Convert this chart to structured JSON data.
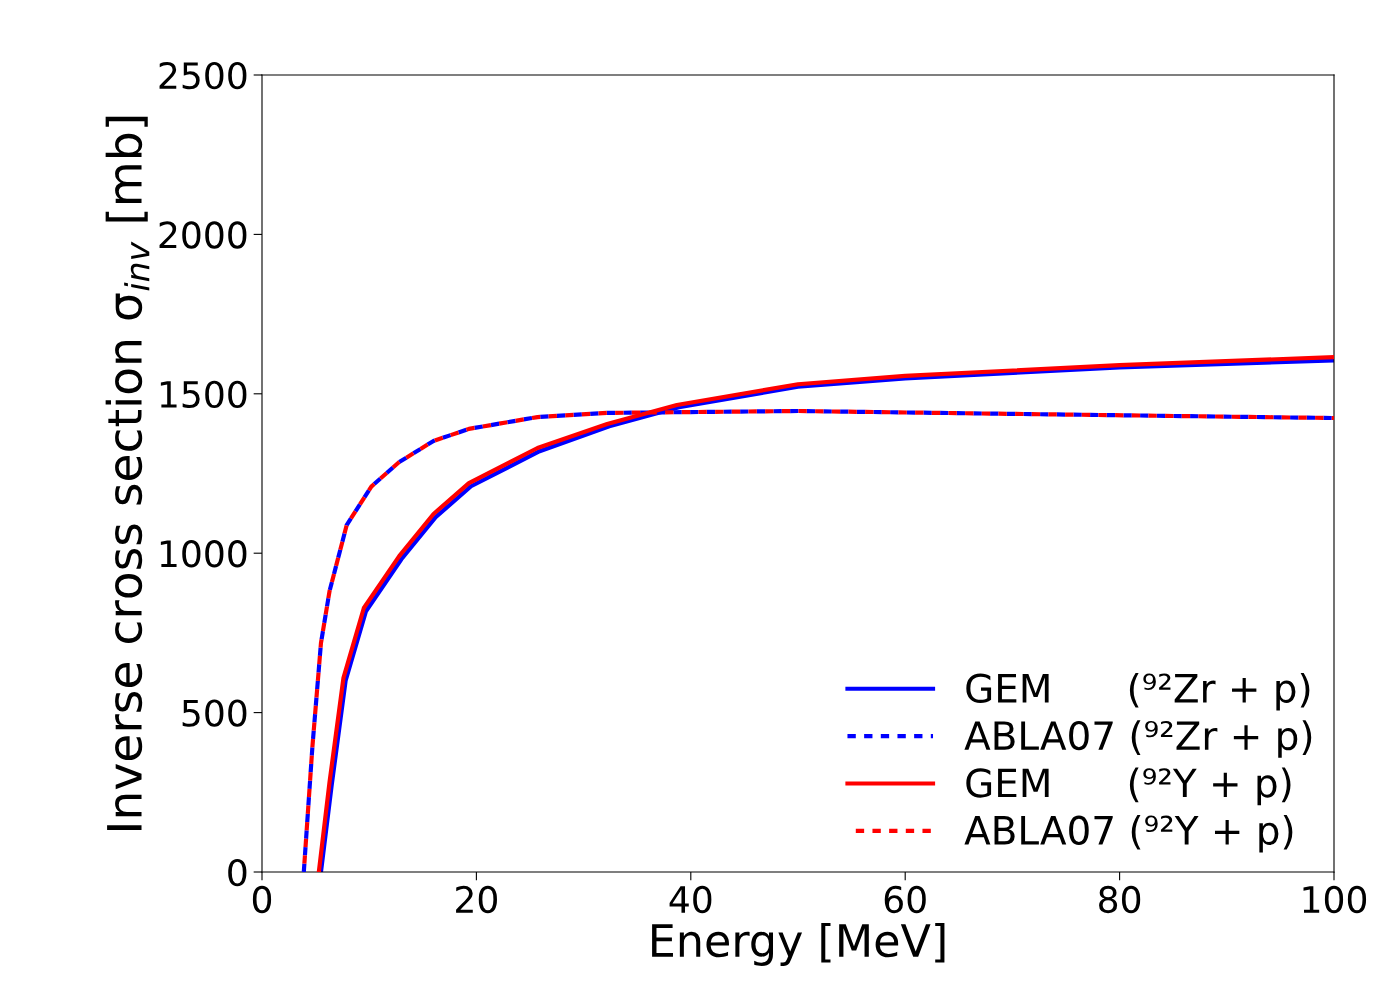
{
  "chart_data": {
    "type": "line",
    "xlabel": "Energy [MeV]",
    "ylabel": "Inverse cross section σ$_{inv}$ [mb]",
    "xlim": [
      0,
      100
    ],
    "ylim": [
      0,
      2500
    ],
    "xticks": [
      0,
      20,
      40,
      60,
      80,
      100
    ],
    "yticks": [
      0,
      500,
      1000,
      1500,
      2000,
      2500
    ],
    "grid": false,
    "legend": "bottom right",
    "series": [
      {
        "name": "GEM      (⁹²Zr + p)",
        "color": "#0000ff",
        "line_style": "solid",
        "x": [
          5.5,
          6.5,
          7.8,
          9.7,
          13.0,
          16.2,
          19.5,
          25.9,
          32.4,
          38.9,
          50,
          60,
          80,
          100
        ],
        "values": [
          0,
          272,
          600,
          818,
          981,
          1113,
          1210,
          1320,
          1398,
          1458,
          1522,
          1548,
          1583,
          1605
        ]
      },
      {
        "name": "ABLA07 (⁹²Zr + p)",
        "color": "#0000ff",
        "line_style": "dashed",
        "x": [
          3.9,
          4.7,
          5.5,
          6.3,
          7.9,
          10.2,
          12.8,
          16.0,
          19.3,
          25.7,
          32.2,
          50,
          70,
          100
        ],
        "values": [
          0,
          392,
          718,
          881,
          1088,
          1209,
          1286,
          1352,
          1390,
          1427,
          1440,
          1446,
          1437,
          1424
        ]
      },
      {
        "name": "GEM      (⁹²Y + p)",
        "color": "#ff0000",
        "line_style": "solid",
        "x": [
          5.3,
          6.3,
          7.6,
          9.5,
          12.8,
          16.0,
          19.3,
          25.7,
          32.2,
          38.7,
          50,
          60,
          80,
          100
        ],
        "values": [
          0,
          282,
          609,
          828,
          991,
          1123,
          1220,
          1330,
          1405,
          1465,
          1530,
          1556,
          1590,
          1615
        ]
      },
      {
        "name": "ABLA07 (⁹²Y + p)",
        "color": "#ff0000",
        "line_style": "dashed",
        "x": [
          3.9,
          4.7,
          5.5,
          6.3,
          7.9,
          10.2,
          12.8,
          16.0,
          19.3,
          25.7,
          32.2,
          50,
          70,
          100
        ],
        "values": [
          0,
          392,
          718,
          881,
          1088,
          1209,
          1286,
          1352,
          1390,
          1427,
          1440,
          1446,
          1437,
          1424
        ]
      }
    ]
  }
}
